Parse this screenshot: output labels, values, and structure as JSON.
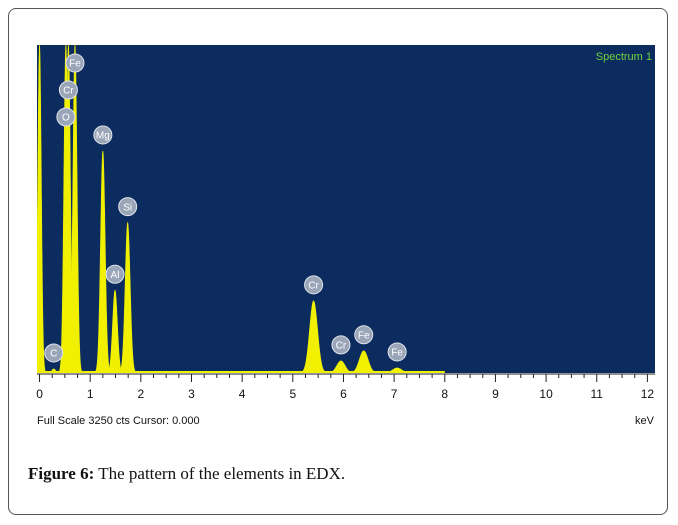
{
  "chart_data": {
    "type": "spectrum",
    "legend_label": "Spectrum 1",
    "footer": "Full Scale 3250 cts Cursor: 0.000",
    "x_unit": "keV",
    "xlim": [
      -0.05,
      12.15
    ],
    "xticks": [
      0,
      1,
      2,
      3,
      4,
      5,
      6,
      7,
      8,
      9,
      10,
      11,
      12
    ],
    "ylim": [
      0,
      3250
    ],
    "color": "#f0f000",
    "background": "#0c2c60",
    "peaks": [
      {
        "label": null,
        "energy": 0.0,
        "counts": 3250
      },
      {
        "label": "C",
        "energy": 0.28,
        "counts": 40
      },
      {
        "label": "O",
        "energy": 0.52,
        "counts": 3250
      },
      {
        "label": "Cr",
        "energy": 0.57,
        "counts": 3250
      },
      {
        "label": "Fe",
        "energy": 0.7,
        "counts": 3250
      },
      {
        "label": "Mg",
        "energy": 1.25,
        "counts": 2200
      },
      {
        "label": "Al",
        "energy": 1.49,
        "counts": 820
      },
      {
        "label": "Si",
        "energy": 1.74,
        "counts": 1490
      },
      {
        "label": "Cr",
        "energy": 5.41,
        "counts": 715
      },
      {
        "label": "Cr",
        "energy": 5.95,
        "counts": 120
      },
      {
        "label": "Fe",
        "energy": 6.4,
        "counts": 220
      },
      {
        "label": "Fe",
        "energy": 7.06,
        "counts": 50
      }
    ]
  },
  "caption": {
    "label": "Figure 6:",
    "text": "The pattern of the elements in EDX."
  }
}
